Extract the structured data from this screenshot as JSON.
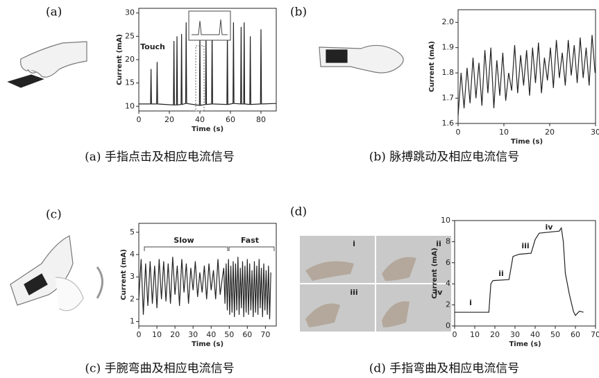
{
  "chart_data": [
    {
      "type": "line",
      "panel_label": "(a)",
      "caption": "(a) 手指点击及相应电流信号",
      "x_label": "Time (s)",
      "y_label": "Current (mA)",
      "annotations": [
        "Touch"
      ],
      "color": "#222222",
      "xlim": [
        0,
        90
      ],
      "xticks": [
        0,
        20,
        40,
        60,
        80
      ],
      "ylim": [
        9,
        31
      ],
      "yticks": [
        10,
        15,
        20,
        25,
        30
      ],
      "x": [
        0,
        7.7,
        8,
        8.3,
        11.7,
        12,
        12.3,
        22.7,
        23,
        23.3,
        24.7,
        25,
        25.3,
        27.7,
        28,
        28.3,
        30.7,
        31,
        31.3,
        39.7,
        40,
        40.3,
        43.7,
        44,
        44.3,
        47.7,
        48,
        48.3,
        57.7,
        58,
        58.3,
        61.7,
        62,
        62.3,
        66.7,
        67,
        67.3,
        68.7,
        69,
        69.3,
        72.7,
        73,
        73.3,
        79.7,
        80,
        80.3,
        90
      ],
      "values": [
        10.5,
        10.5,
        18,
        10.5,
        10.5,
        19.5,
        10.5,
        10.3,
        24,
        10.3,
        10.3,
        25,
        10.3,
        10.4,
        25.5,
        10.4,
        10.6,
        28,
        10.6,
        10.2,
        26,
        10.2,
        10.4,
        26,
        10.4,
        10.5,
        26.5,
        10.5,
        10.4,
        26,
        10.4,
        10.6,
        28,
        10.6,
        10.5,
        27,
        10.5,
        10.5,
        28,
        10.5,
        10.4,
        25,
        10.4,
        10.5,
        26.5,
        10.5,
        10.6
      ]
    },
    {
      "type": "line",
      "panel_label": "(b)",
      "caption": "(b) 脉搏跳动及相应电流信号",
      "x_label": "Time (s)",
      "y_label": "Current (mA)",
      "annotations": [],
      "color": "#222222",
      "xlim": [
        0,
        30
      ],
      "xticks": [
        0,
        10,
        20,
        30
      ],
      "ylim": [
        1.6,
        2.05
      ],
      "yticks": [
        1.6,
        1.7,
        1.8,
        1.9,
        {
          "value": 2,
          "label": "2.0"
        }
      ],
      "x": [
        0,
        0.65,
        1.3,
        1.95,
        2.6,
        3.25,
        3.9,
        4.55,
        5.2,
        5.85,
        6.5,
        7.15,
        7.8,
        8.45,
        9.1,
        9.75,
        10.4,
        11.05,
        11.7,
        12.35,
        13,
        13.65,
        14.3,
        14.95,
        15.6,
        16.25,
        16.9,
        17.55,
        18.2,
        18.85,
        19.5,
        20.15,
        20.8,
        21.45,
        22.1,
        22.75,
        23.4,
        24.05,
        24.7,
        25.35,
        26,
        26.65,
        27.3,
        27.95,
        28.6,
        29.25,
        29.9
      ],
      "values": [
        1.63,
        1.8,
        1.66,
        1.82,
        1.68,
        1.86,
        1.7,
        1.84,
        1.67,
        1.89,
        1.72,
        1.9,
        1.66,
        1.85,
        1.71,
        1.88,
        1.69,
        1.8,
        1.73,
        1.91,
        1.72,
        1.87,
        1.75,
        1.89,
        1.71,
        1.9,
        1.76,
        1.92,
        1.72,
        1.86,
        1.77,
        1.9,
        1.74,
        1.93,
        1.78,
        1.88,
        1.75,
        1.93,
        1.79,
        1.91,
        1.76,
        1.94,
        1.78,
        1.9,
        1.75,
        1.95,
        1.8
      ]
    },
    {
      "type": "line",
      "panel_label": "(c)",
      "caption": "(c) 手腕弯曲及相应电流信号",
      "x_label": "Time (s)",
      "y_label": "Current (mA)",
      "annotations": [
        "Slow",
        "Fast"
      ],
      "color": "#222222",
      "xlim": [
        0,
        76
      ],
      "xticks": [
        0,
        10,
        20,
        30,
        40,
        50,
        60,
        70
      ],
      "ylim": [
        0.8,
        5.4
      ],
      "yticks": [
        1,
        2,
        3,
        4,
        5
      ],
      "x": [
        0,
        1.25,
        2.5,
        3.75,
        5,
        6.25,
        7.5,
        8.75,
        10,
        11.25,
        12.5,
        13.75,
        15,
        16.25,
        17.5,
        18.75,
        20,
        21.25,
        22.5,
        23.75,
        25,
        26.25,
        27.5,
        28.75,
        30,
        31.25,
        32.5,
        33.75,
        35,
        36.25,
        37.5,
        38.75,
        40,
        41.25,
        42.5,
        43.75,
        45,
        46.25,
        47,
        47.65,
        48.3,
        48.95,
        49.6,
        50.25,
        50.9,
        51.55,
        52.2,
        52.85,
        53.5,
        54.15,
        54.8,
        55.45,
        56.1,
        56.75,
        57.4,
        58.05,
        58.7,
        59.35,
        60,
        60.65,
        61.3,
        61.95,
        62.6,
        63.25,
        63.9,
        64.55,
        65.2,
        65.85,
        66.5,
        67.15,
        67.8,
        68.45,
        69.1,
        69.75,
        70.4,
        71.05,
        71.7,
        72.35,
        73
      ],
      "values": [
        2.0,
        3.8,
        1.3,
        3.6,
        1.7,
        3.7,
        1.8,
        3.5,
        1.6,
        3.8,
        2.0,
        3.7,
        1.9,
        3.6,
        1.8,
        3.9,
        2.2,
        3.5,
        1.7,
        3.8,
        2.3,
        3.6,
        1.8,
        3.4,
        2.4,
        3.7,
        2.1,
        3.2,
        2.3,
        3.5,
        2.0,
        3.6,
        2.4,
        3.3,
        2.0,
        3.8,
        2.2,
        3.0,
        3.4,
        1.8,
        3.6,
        1.5,
        3.8,
        1.3,
        3.5,
        1.4,
        3.7,
        1.2,
        3.6,
        1.5,
        3.9,
        1.3,
        3.4,
        1.6,
        3.7,
        1.2,
        3.5,
        1.4,
        3.8,
        1.3,
        3.6,
        1.5,
        3.3,
        1.2,
        3.7,
        1.4,
        3.5,
        1.3,
        3.8,
        1.6,
        3.4,
        1.2,
        3.6,
        1.5,
        3.3,
        1.3,
        3.5,
        1.1,
        3.2
      ]
    },
    {
      "type": "line",
      "panel_label": "(d)",
      "caption": "(d) 手指弯曲及相应电流信号",
      "x_label": "Time (s)",
      "y_label": "Current (mA)",
      "annotations": [
        "i",
        "ii",
        "iii",
        "iv"
      ],
      "photo_labels": [
        "i",
        "ii",
        "iii",
        "iv"
      ],
      "color": "#222222",
      "xlim": [
        0,
        70
      ],
      "xticks": [
        0,
        10,
        20,
        30,
        40,
        50,
        60,
        70
      ],
      "ylim": [
        0,
        10
      ],
      "yticks": [
        0,
        2,
        4,
        6,
        8,
        10
      ],
      "x": [
        0,
        17,
        18,
        19,
        27,
        28,
        29,
        32,
        38,
        40,
        42,
        52,
        53,
        54,
        55,
        57,
        58,
        59,
        60,
        62,
        64
      ],
      "values": [
        1.3,
        1.3,
        4.0,
        4.3,
        4.4,
        5.5,
        6.6,
        6.8,
        6.9,
        8.2,
        8.8,
        9.0,
        9.3,
        8.0,
        5.0,
        3.0,
        2.2,
        1.4,
        1.0,
        1.4,
        1.3
      ]
    }
  ]
}
